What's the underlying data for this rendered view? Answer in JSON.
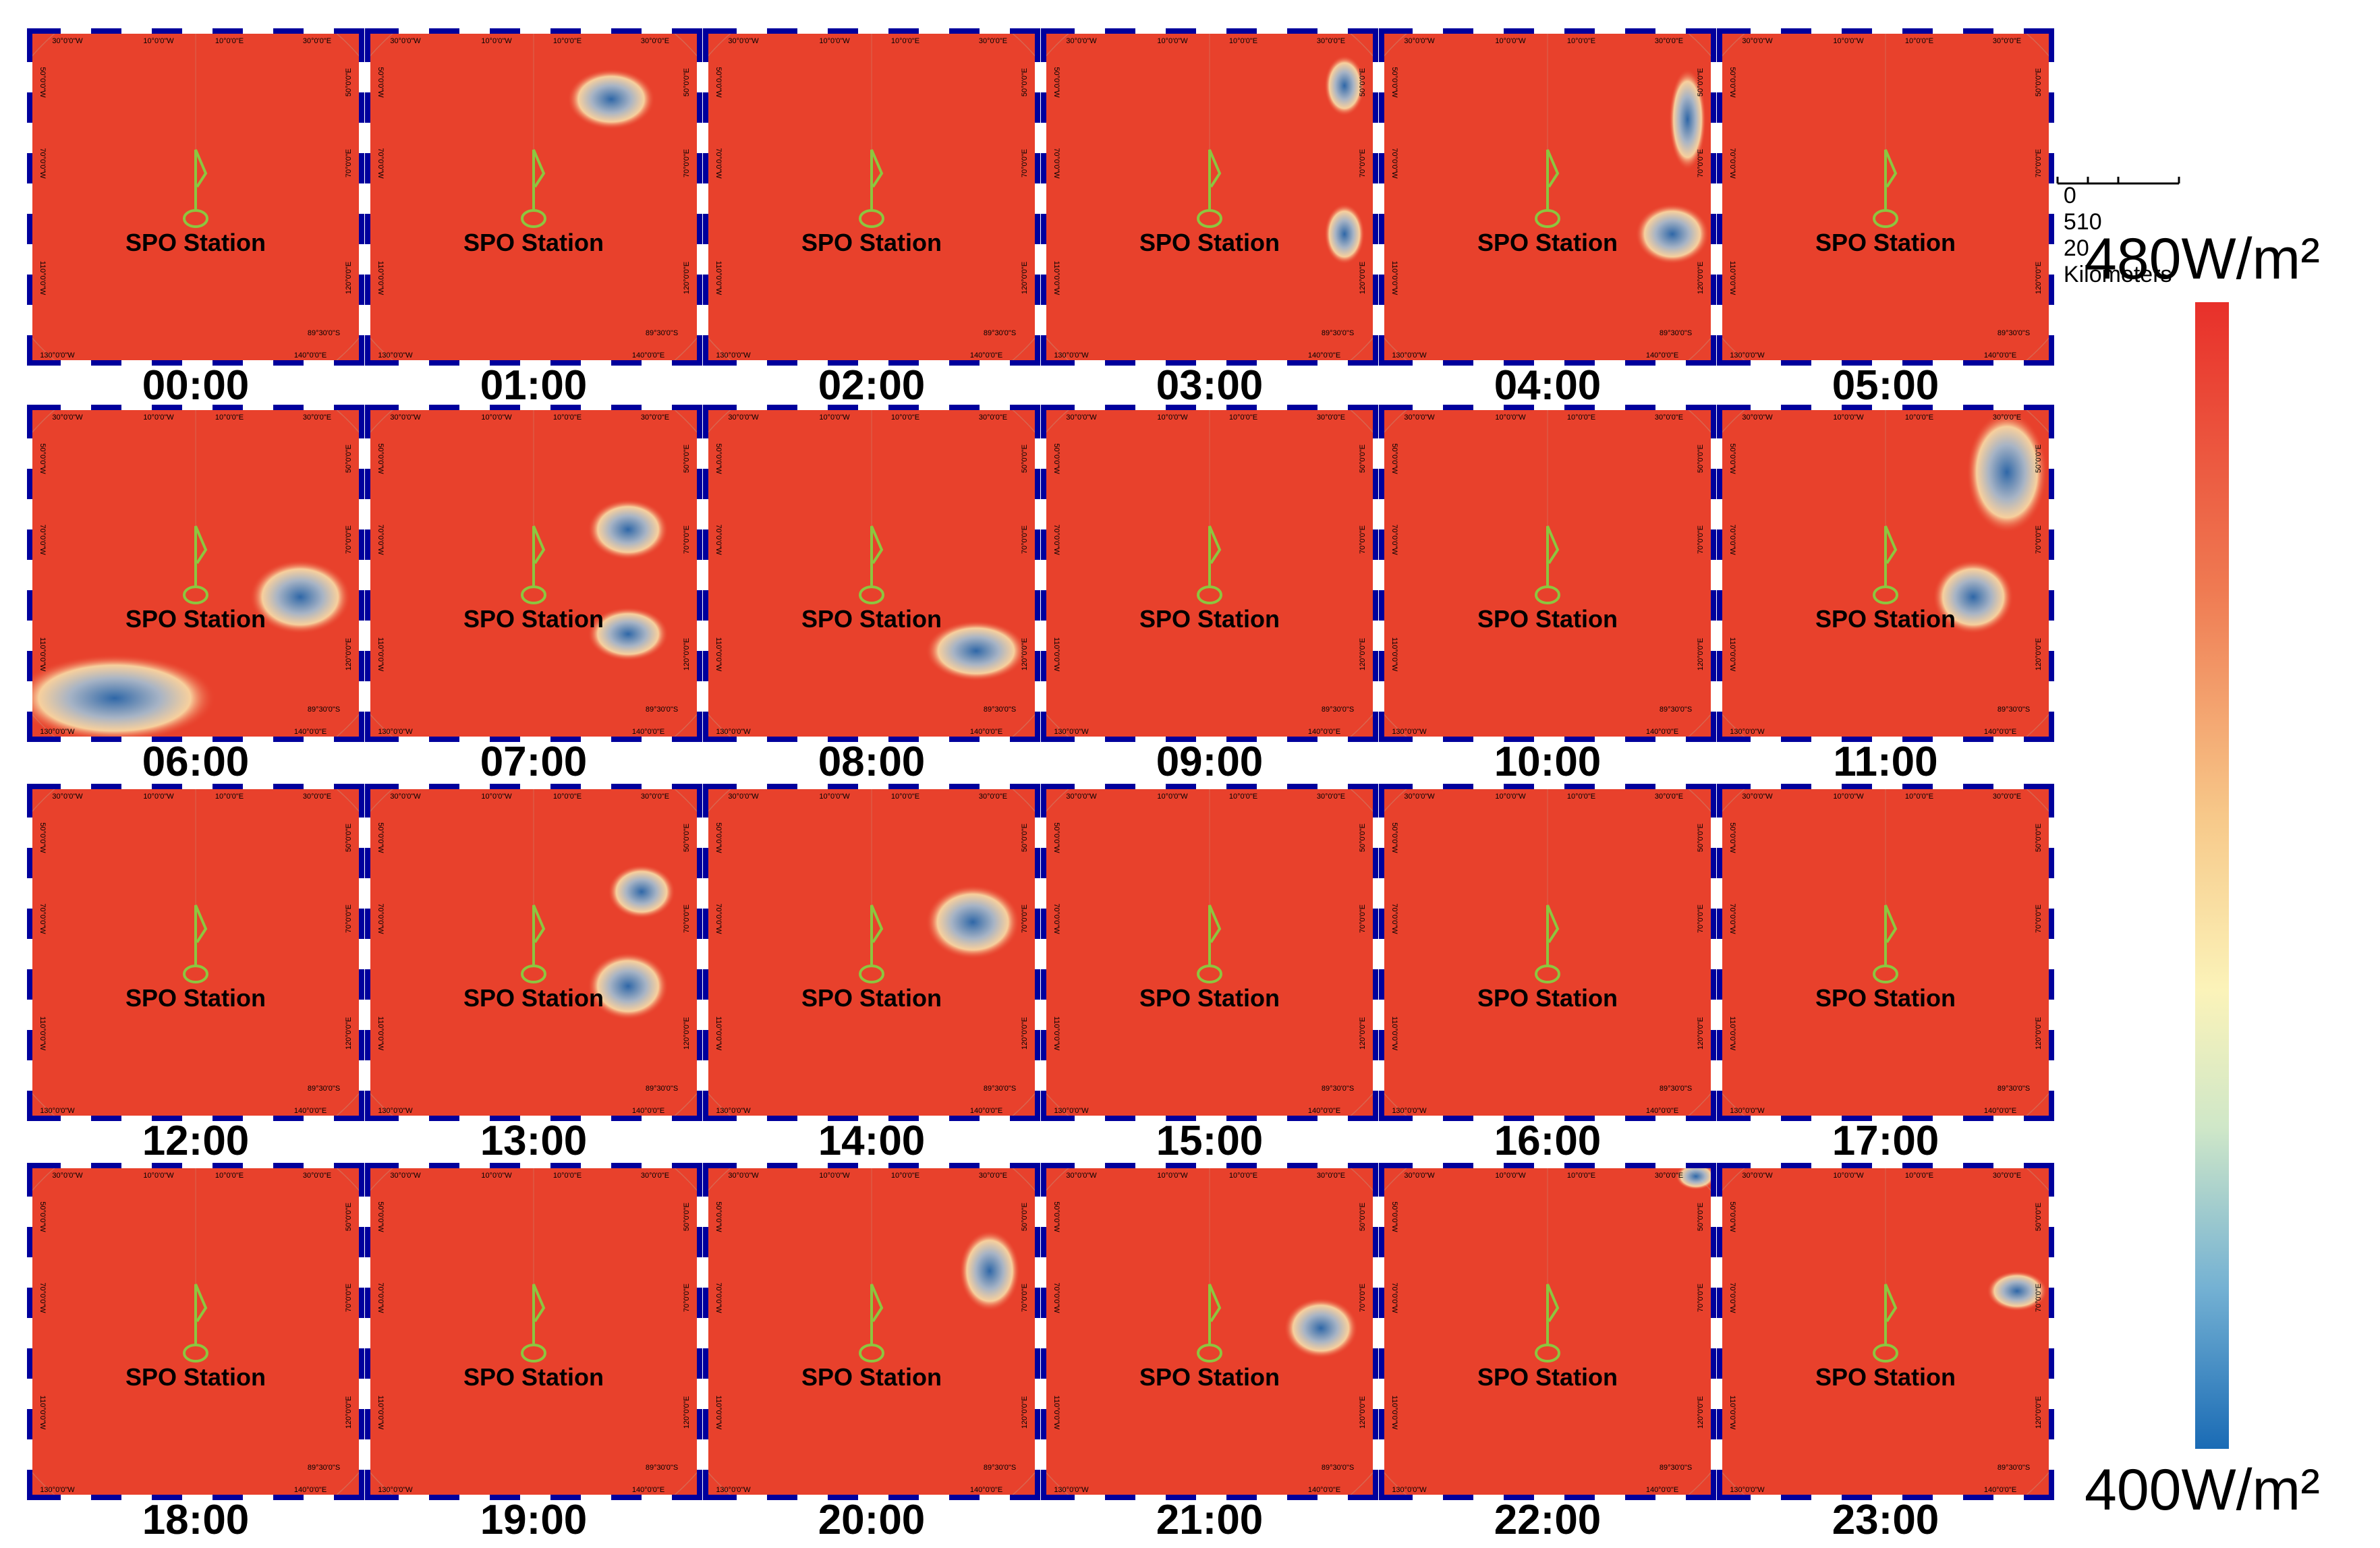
{
  "panels": [
    {
      "time": "00:00",
      "station": "SPO Station"
    },
    {
      "time": "01:00",
      "station": "SPO Station"
    },
    {
      "time": "02:00",
      "station": "SPO Station"
    },
    {
      "time": "03:00",
      "station": "SPO Station"
    },
    {
      "time": "04:00",
      "station": "SPO Station"
    },
    {
      "time": "05:00",
      "station": "SPO Station"
    },
    {
      "time": "06:00",
      "station": "SPO Station"
    },
    {
      "time": "07:00",
      "station": "SPO Station"
    },
    {
      "time": "08:00",
      "station": "SPO Station"
    },
    {
      "time": "09:00",
      "station": "SPO Station"
    },
    {
      "time": "10:00",
      "station": "SPO Station"
    },
    {
      "time": "11:00",
      "station": "SPO Station"
    },
    {
      "time": "12:00",
      "station": "SPO Station"
    },
    {
      "time": "13:00",
      "station": "SPO Station"
    },
    {
      "time": "14:00",
      "station": "SPO Station"
    },
    {
      "time": "15:00",
      "station": "SPO Station"
    },
    {
      "time": "16:00",
      "station": "SPO Station"
    },
    {
      "time": "17:00",
      "station": "SPO Station"
    },
    {
      "time": "18:00",
      "station": "SPO Station"
    },
    {
      "time": "19:00",
      "station": "SPO Station"
    },
    {
      "time": "20:00",
      "station": "SPO Station"
    },
    {
      "time": "21:00",
      "station": "SPO Station"
    },
    {
      "time": "22:00",
      "station": "SPO Station"
    },
    {
      "time": "23:00",
      "station": "SPO Station"
    }
  ],
  "graticule": {
    "top": [
      "30°0'0\"W",
      "10°0'0\"W",
      "10°0'0\"E",
      "30°0'0\"E"
    ],
    "bottom": [
      "130°0'0\"W",
      "140°0'0\"E"
    ],
    "left": [
      "50°0'0\"W",
      "70°0'0\"W",
      "110°0'0\"W"
    ],
    "right": [
      "50°0'0\"E",
      "70°0'0\"E",
      "120°0'0\"E"
    ],
    "lat": "89°30'0\"S"
  },
  "scale_bar": {
    "ticks": [
      "0",
      "5",
      "10",
      "20"
    ],
    "unit": "Kilometers"
  },
  "legend": {
    "max": "480W/m²",
    "min": "400W/m²"
  },
  "colors": {
    "high": "#e8412c",
    "low": "#1a6bb5",
    "mid": "#fbf3b9",
    "frame": "#00009c",
    "station": "#8cc63f"
  }
}
